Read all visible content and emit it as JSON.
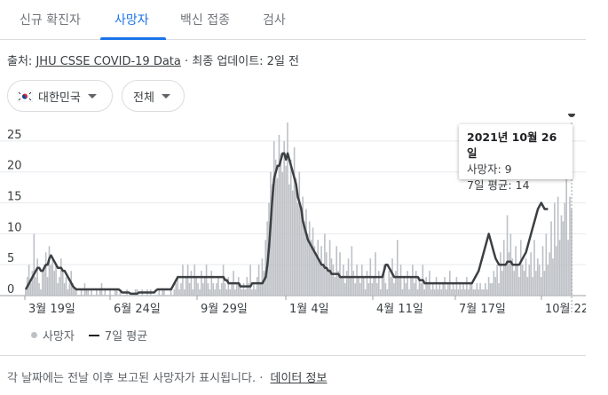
{
  "tabs": [
    {
      "label": "신규 확진자",
      "active": false
    },
    {
      "label": "사망자",
      "active": true
    },
    {
      "label": "백신 접종",
      "active": false
    },
    {
      "label": "검사",
      "active": false
    }
  ],
  "source": {
    "prefix": "출처:",
    "link": "JHU CSSE COVID-19 Data",
    "suffix": "· 최종 업데이트: 2일 전"
  },
  "filters": {
    "country": "대한민국",
    "country_icon": "south-korea-flag-icon",
    "range": "전체"
  },
  "tooltip": {
    "date": "2021년 10월 26일",
    "deaths": "사망자: 9",
    "avg": "7일 평균: 14"
  },
  "legend": {
    "bars": "사망자",
    "line": "7일 평균"
  },
  "footer": {
    "note": "각 날짜에는 전날 이후 보고된 사망자가 표시됩니다.",
    "sep": "·",
    "link": "데이터 정보"
  },
  "colors": {
    "accent": "#1a73e8",
    "bars": "#bdc1c6",
    "line": "#3c4043",
    "grid": "#e8eaed"
  },
  "chart_data": {
    "type": "bar",
    "title": "",
    "xlabel": "",
    "ylabel": "",
    "ylim": [
      0,
      28
    ],
    "yticks": [
      0,
      5,
      10,
      15,
      20,
      25
    ],
    "xticks": [
      "3월 19일",
      "6월 24일",
      "9월 29일",
      "1월 4일",
      "4월 11일",
      "7월 17일",
      "10월 22일"
    ],
    "series": [
      {
        "name": "사망자",
        "values": [
          1,
          3,
          5,
          2,
          4,
          10,
          3,
          6,
          2,
          1,
          4,
          5,
          7,
          3,
          8,
          5,
          6,
          4,
          5,
          2,
          3,
          6,
          4,
          2,
          3,
          1,
          2,
          4,
          2,
          1,
          1,
          0,
          0,
          1,
          0,
          2,
          1,
          1,
          0,
          1,
          0,
          0,
          1,
          0,
          1,
          2,
          0,
          1,
          0,
          0,
          1,
          0,
          0,
          1,
          1,
          0,
          1,
          0,
          0,
          0,
          1,
          0,
          0,
          0,
          0,
          1,
          1,
          0,
          0,
          1,
          0,
          0,
          1,
          0,
          1,
          0,
          0,
          0,
          0,
          1,
          0,
          1,
          1,
          0,
          0,
          0,
          1,
          0,
          1,
          2,
          3,
          1,
          2,
          5,
          1,
          3,
          5,
          2,
          4,
          1,
          5,
          3,
          2,
          1,
          4,
          2,
          3,
          5,
          2,
          1,
          4,
          2,
          1,
          2,
          3,
          1,
          2,
          5,
          2,
          1,
          3,
          1,
          2,
          4,
          1,
          2,
          3,
          2,
          1,
          2,
          1,
          3,
          2,
          5,
          1,
          2,
          1,
          3,
          5,
          2,
          6,
          4,
          9,
          12,
          15,
          20,
          18,
          25,
          22,
          19,
          26,
          23,
          20,
          25,
          21,
          28,
          18,
          22,
          17,
          24,
          19,
          15,
          20,
          14,
          16,
          12,
          14,
          10,
          12,
          9,
          11,
          8,
          7,
          9,
          6,
          8,
          5,
          10,
          7,
          4,
          9,
          6,
          5,
          3,
          8,
          4,
          7,
          3,
          5,
          2,
          4,
          6,
          3,
          8,
          4,
          2,
          5,
          3,
          2,
          5,
          3,
          1,
          4,
          2,
          6,
          2,
          3,
          7,
          2,
          4,
          1,
          3,
          5,
          2,
          1,
          4,
          3,
          6,
          2,
          4,
          9,
          3,
          5,
          1,
          3,
          2,
          4,
          1,
          3,
          5,
          2,
          4,
          1,
          3,
          2,
          5,
          1,
          3,
          2,
          4,
          1,
          2,
          1,
          3,
          1,
          2,
          1,
          2,
          3,
          1,
          2,
          4,
          1,
          2,
          1,
          3,
          1,
          2,
          1,
          2,
          1,
          3,
          1,
          2,
          2,
          1,
          1,
          2,
          1,
          2,
          1,
          1,
          2,
          1,
          3,
          2,
          2,
          4,
          3,
          5,
          2,
          7,
          4,
          9,
          5,
          13,
          7,
          10,
          6,
          4,
          8,
          5,
          3,
          9,
          5,
          4,
          6,
          3,
          5,
          7,
          3,
          9,
          4,
          6,
          5,
          3,
          8,
          4,
          10,
          5,
          7,
          12,
          6,
          15,
          8,
          16,
          9,
          13,
          12,
          15,
          19,
          9,
          16,
          14
        ]
      },
      {
        "name": "7일 평균",
        "values": [
          1,
          1.5,
          2,
          2.5,
          3,
          3.5,
          4,
          4.5,
          4.5,
          4,
          4,
          4.5,
          5,
          5,
          6,
          6.5,
          6,
          5.5,
          5,
          4.5,
          4.5,
          4.5,
          4,
          4,
          3.5,
          3,
          2.5,
          2,
          1.5,
          1.2,
          1,
          1,
          1,
          1,
          1,
          1,
          1,
          1,
          1,
          1,
          1,
          1,
          1,
          1,
          1,
          1,
          1,
          1,
          1,
          1,
          1,
          1,
          1,
          1,
          1,
          1,
          0.8,
          0.5,
          0.5,
          0.5,
          0.5,
          0.5,
          0.3,
          0.3,
          0.3,
          0.3,
          0.3,
          0.5,
          0.5,
          0.5,
          0.5,
          0.5,
          0.5,
          0.5,
          0.5,
          0.5,
          0.5,
          0.8,
          1,
          1,
          1,
          1,
          1,
          1,
          1,
          1,
          1,
          1.5,
          2,
          2.5,
          3,
          3,
          3,
          3,
          3,
          3,
          3,
          3,
          3,
          3,
          3,
          3,
          3,
          3,
          3,
          3,
          3,
          3,
          3,
          3,
          3,
          3,
          3,
          3,
          3,
          3,
          3,
          3,
          2.5,
          2.5,
          2,
          2,
          2,
          2,
          2,
          2,
          2,
          1.5,
          1.5,
          1.5,
          1.5,
          1.5,
          1.5,
          1.5,
          2,
          2,
          2,
          2,
          2,
          2,
          2,
          2.5,
          3,
          5,
          8,
          12,
          16,
          19,
          20,
          21,
          21,
          22,
          23,
          23,
          22,
          23,
          22,
          21,
          20,
          19,
          18,
          16,
          15,
          14,
          12,
          11,
          10,
          9,
          8.5,
          8,
          7.5,
          7,
          6.5,
          6,
          5.5,
          5,
          5,
          4.5,
          4.5,
          4,
          4,
          3.5,
          3.5,
          3.5,
          3.5,
          3.5,
          3,
          3,
          3,
          3,
          3,
          3,
          3,
          3,
          3,
          3,
          3,
          3,
          3,
          3,
          3,
          3,
          3,
          3,
          3,
          3,
          3,
          3,
          3,
          3,
          3,
          3,
          4,
          5,
          5,
          4.5,
          4,
          3.5,
          3,
          3,
          3,
          3,
          3,
          3,
          3,
          3,
          3,
          3,
          3,
          3,
          3,
          3,
          3,
          2.5,
          2.5,
          2.5,
          2,
          2,
          2,
          2,
          2,
          2,
          2,
          2,
          2,
          2,
          2,
          2,
          2,
          2,
          2,
          2,
          2,
          2,
          2,
          2,
          2,
          2,
          2,
          2,
          2,
          2,
          2,
          2,
          2,
          2.5,
          3,
          3.5,
          4,
          5,
          6,
          7,
          8,
          9,
          10,
          9,
          8,
          7,
          6,
          5.5,
          5,
          5,
          5,
          5,
          5,
          5.5,
          5.5,
          5.5,
          5,
          5,
          5,
          5,
          5,
          5.5,
          6,
          6.5,
          7,
          8,
          9,
          10,
          11,
          12,
          13,
          14,
          14.5,
          15,
          14.5,
          14,
          14,
          14
        ]
      }
    ]
  }
}
